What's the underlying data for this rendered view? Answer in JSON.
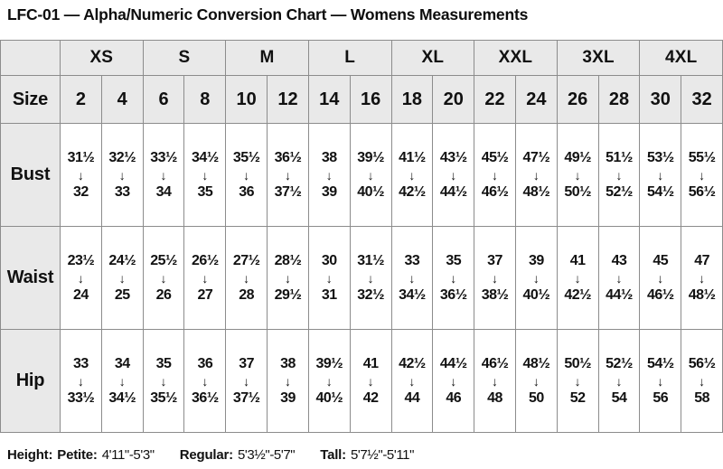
{
  "title": "LFC-01 — Alpha/Numeric Conversion Chart — Womens Measurements",
  "chart_data": {
    "type": "table",
    "title": "LFC-01 — Alpha/Numeric Conversion Chart — Womens Measurements",
    "size_label": "Size",
    "alpha_sizes": [
      "XS",
      "S",
      "M",
      "L",
      "XL",
      "XXL",
      "3XL",
      "4XL"
    ],
    "numeric_sizes": [
      "2",
      "4",
      "6",
      "8",
      "10",
      "12",
      "14",
      "16",
      "18",
      "20",
      "22",
      "24",
      "26",
      "28",
      "30",
      "32"
    ],
    "arrow_glyph": "↓",
    "measurements": [
      {
        "label": "Bust",
        "ranges": [
          [
            "31½",
            "32"
          ],
          [
            "32½",
            "33"
          ],
          [
            "33½",
            "34"
          ],
          [
            "34½",
            "35"
          ],
          [
            "35½",
            "36"
          ],
          [
            "36½",
            "37½"
          ],
          [
            "38",
            "39"
          ],
          [
            "39½",
            "40½"
          ],
          [
            "41½",
            "42½"
          ],
          [
            "43½",
            "44½"
          ],
          [
            "45½",
            "46½"
          ],
          [
            "47½",
            "48½"
          ],
          [
            "49½",
            "50½"
          ],
          [
            "51½",
            "52½"
          ],
          [
            "53½",
            "54½"
          ],
          [
            "55½",
            "56½"
          ]
        ]
      },
      {
        "label": "Waist",
        "ranges": [
          [
            "23½",
            "24"
          ],
          [
            "24½",
            "25"
          ],
          [
            "25½",
            "26"
          ],
          [
            "26½",
            "27"
          ],
          [
            "27½",
            "28"
          ],
          [
            "28½",
            "29½"
          ],
          [
            "30",
            "31"
          ],
          [
            "31½",
            "32½"
          ],
          [
            "33",
            "34½"
          ],
          [
            "35",
            "36½"
          ],
          [
            "37",
            "38½"
          ],
          [
            "39",
            "40½"
          ],
          [
            "41",
            "42½"
          ],
          [
            "43",
            "44½"
          ],
          [
            "45",
            "46½"
          ],
          [
            "47",
            "48½"
          ]
        ]
      },
      {
        "label": "Hip",
        "ranges": [
          [
            "33",
            "33½"
          ],
          [
            "34",
            "34½"
          ],
          [
            "35",
            "35½"
          ],
          [
            "36",
            "36½"
          ],
          [
            "37",
            "37½"
          ],
          [
            "38",
            "39"
          ],
          [
            "39½",
            "40½"
          ],
          [
            "41",
            "42"
          ],
          [
            "42½",
            "44"
          ],
          [
            "44½",
            "46"
          ],
          [
            "46½",
            "48"
          ],
          [
            "48½",
            "50"
          ],
          [
            "50½",
            "52"
          ],
          [
            "52½",
            "54"
          ],
          [
            "54½",
            "56"
          ],
          [
            "56½",
            "58"
          ]
        ]
      }
    ]
  },
  "footer": {
    "height_label": "Height:",
    "ranges": [
      {
        "label": "Petite:",
        "value": "4'11\"-5'3\""
      },
      {
        "label": "Regular:",
        "value": "5'3½\"-5'7\""
      },
      {
        "label": "Tall:",
        "value": "5'7½\"-5'11\""
      }
    ]
  },
  "colors": {
    "header_bg": "#e9e9e9",
    "border": "#8c8c8c",
    "text": "#111111",
    "background": "#ffffff"
  }
}
